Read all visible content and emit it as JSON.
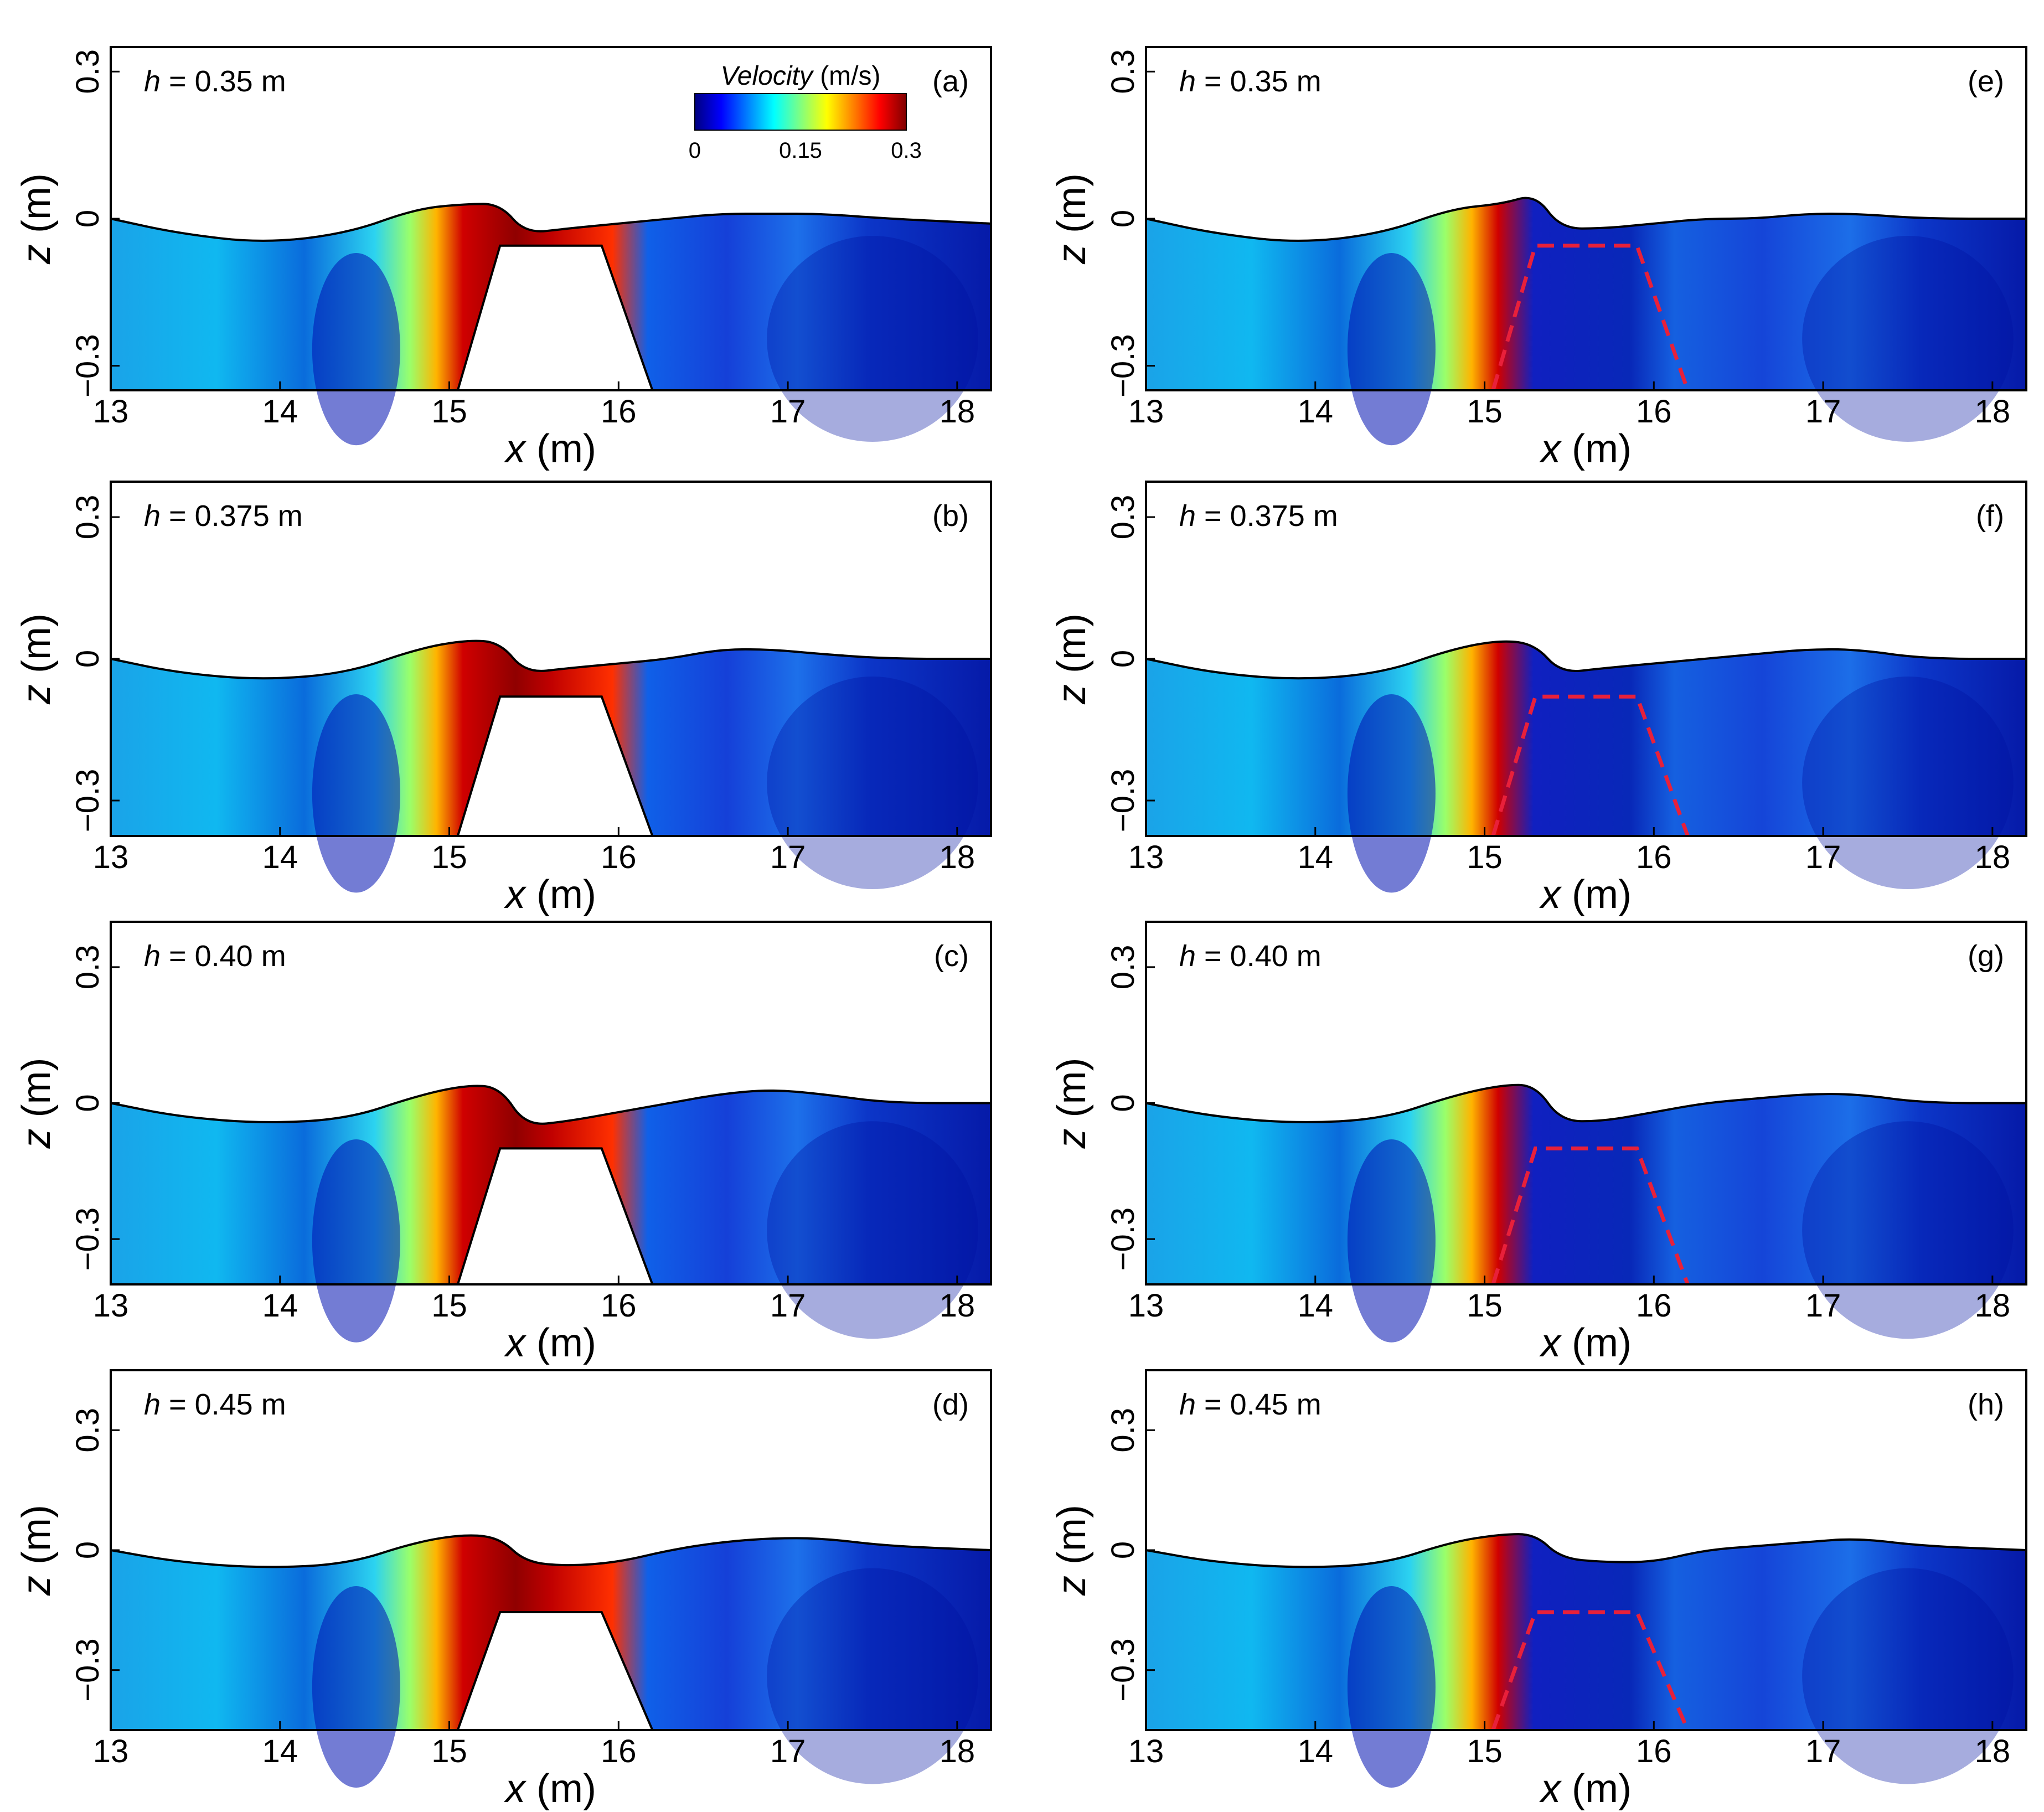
{
  "chart_data": {
    "type": "heatmap",
    "figure": "Velocity magnitude contours over a submerged trapezoidal breakwater",
    "x_axis": {
      "label_var": "x",
      "label_unit": " (m)",
      "range": [
        13,
        18.2
      ],
      "ticks": [
        13,
        14,
        15,
        16,
        17,
        18
      ]
    },
    "z_axis": {
      "label_var": "z",
      "label_unit": " (m)",
      "ticks": [
        "0.3",
        "0",
        "−0.3"
      ],
      "tick_values": [
        0.3,
        0,
        -0.3
      ]
    },
    "colorbar": {
      "title_var": "Velocity",
      "title_unit": " (m/s)",
      "range": [
        0,
        0.3
      ],
      "tick_labels": [
        "0",
        "0.15",
        "0.3"
      ],
      "tick_values": [
        0,
        0.15,
        0.3
      ],
      "colormap": [
        "#00007f",
        "#0000ff",
        "#0080ff",
        "#00ffff",
        "#80ff80",
        "#ffff00",
        "#ff8000",
        "#ff0000",
        "#7f0000"
      ]
    },
    "breakwater": {
      "x_toe": [
        15.05,
        16.2
      ],
      "x_crest": [
        15.3,
        15.9
      ],
      "style_left": "solid white body",
      "style_right": "dashed red outline (porous)"
    },
    "panels": [
      {
        "id": "(a)",
        "h_prefix": "h",
        "h_value": " = 0.35 m",
        "h": 0.35,
        "z_min": -0.35,
        "z_max": 0.35,
        "crest_z": -0.055,
        "structure": "impermeable"
      },
      {
        "id": "(b)",
        "h_prefix": "h",
        "h_value": " = 0.375 m",
        "h": 0.375,
        "z_min": -0.375,
        "z_max": 0.375,
        "crest_z": -0.08,
        "structure": "impermeable"
      },
      {
        "id": "(c)",
        "h_prefix": "h",
        "h_value": " = 0.40 m",
        "h": 0.4,
        "z_min": -0.4,
        "z_max": 0.4,
        "crest_z": -0.1,
        "structure": "impermeable"
      },
      {
        "id": "(d)",
        "h_prefix": "h",
        "h_value": " = 0.45 m",
        "h": 0.45,
        "z_min": -0.45,
        "z_max": 0.45,
        "crest_z": -0.155,
        "structure": "impermeable"
      },
      {
        "id": "(e)",
        "h_prefix": "h",
        "h_value": " = 0.35 m",
        "h": 0.35,
        "z_min": -0.35,
        "z_max": 0.35,
        "crest_z": -0.055,
        "structure": "permeable"
      },
      {
        "id": "(f)",
        "h_prefix": "h",
        "h_value": " = 0.375 m",
        "h": 0.375,
        "z_min": -0.375,
        "z_max": 0.375,
        "crest_z": -0.08,
        "structure": "permeable"
      },
      {
        "id": "(g)",
        "h_prefix": "h",
        "h_value": " = 0.40 m",
        "h": 0.4,
        "z_min": -0.4,
        "z_max": 0.4,
        "crest_z": -0.1,
        "structure": "permeable"
      },
      {
        "id": "(h)",
        "h_prefix": "h",
        "h_value": " = 0.45 m",
        "h": 0.45,
        "z_min": -0.45,
        "z_max": 0.45,
        "crest_z": -0.155,
        "structure": "permeable"
      }
    ],
    "free_surface": {
      "x": [
        13.0,
        13.4,
        13.9,
        14.4,
        14.8,
        15.1,
        15.3,
        15.45,
        15.7,
        16.0,
        16.3,
        16.6,
        16.9,
        17.2,
        17.6,
        18.2
      ],
      "eta_a": [
        0.0,
        -0.03,
        -0.05,
        -0.03,
        0.02,
        0.03,
        0.03,
        -0.03,
        -0.02,
        -0.01,
        0.0,
        0.01,
        0.01,
        0.01,
        0.0,
        -0.01
      ],
      "eta_b": [
        0.0,
        -0.03,
        -0.045,
        -0.03,
        0.02,
        0.04,
        0.035,
        -0.03,
        -0.02,
        -0.01,
        0.0,
        0.02,
        0.02,
        0.01,
        0.0,
        0.0
      ],
      "eta_c": [
        0.0,
        -0.03,
        -0.045,
        -0.035,
        0.015,
        0.04,
        0.035,
        -0.05,
        -0.04,
        -0.02,
        0.0,
        0.02,
        0.03,
        0.02,
        0.0,
        0.0
      ],
      "eta_d": [
        0.0,
        -0.03,
        -0.045,
        -0.035,
        0.02,
        0.04,
        0.03,
        -0.03,
        -0.04,
        -0.03,
        0.0,
        0.02,
        0.03,
        0.03,
        0.01,
        0.0
      ],
      "eta_e": [
        0.0,
        -0.03,
        -0.05,
        -0.03,
        0.02,
        0.03,
        0.05,
        -0.02,
        -0.02,
        -0.01,
        0.0,
        0.0,
        0.01,
        0.01,
        0.0,
        0.0
      ],
      "eta_f": [
        0.0,
        -0.03,
        -0.045,
        -0.03,
        0.02,
        0.04,
        0.03,
        -0.03,
        -0.02,
        -0.01,
        0.0,
        0.01,
        0.02,
        0.02,
        0.0,
        0.0
      ],
      "eta_g": [
        0.0,
        -0.03,
        -0.045,
        -0.035,
        0.015,
        0.04,
        0.04,
        -0.04,
        -0.04,
        -0.02,
        0.0,
        0.01,
        0.02,
        0.02,
        0.0,
        0.0
      ],
      "eta_h": [
        0.0,
        -0.03,
        -0.045,
        -0.035,
        0.02,
        0.04,
        0.04,
        -0.02,
        -0.03,
        -0.03,
        0.0,
        0.01,
        0.02,
        0.03,
        0.01,
        0.0
      ]
    }
  }
}
